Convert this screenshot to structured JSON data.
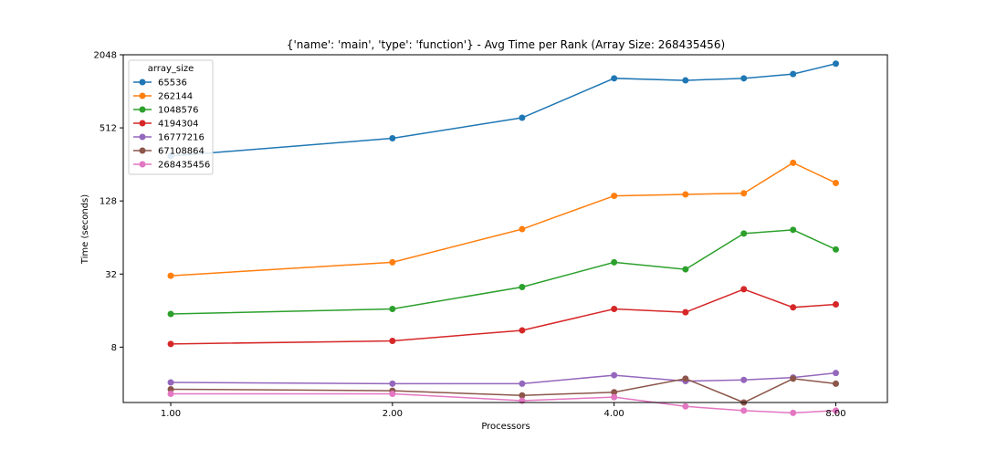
{
  "chart_data": {
    "type": "line",
    "title": "{'name': 'main', 'type': 'function'} - Avg Time per Rank (Array Size: 268435456)",
    "xlabel": "Processors",
    "ylabel": "Time (seconds)",
    "xscale": "log2",
    "yscale": "log2",
    "xlim": [
      0.862,
      9.4
    ],
    "ylim": [
      2.8,
      2048
    ],
    "xticks": [
      1,
      2,
      4,
      8
    ],
    "xtick_labels": [
      "1.00",
      "2.00",
      "4.00",
      "8.00"
    ],
    "yticks": [
      8,
      32,
      128,
      512,
      2048
    ],
    "ytick_labels": [
      "8",
      "32",
      "128",
      "512",
      "2048"
    ],
    "grid": false,
    "legend": {
      "title": "array_size",
      "placement": "top-left"
    },
    "x": [
      1,
      2,
      3,
      4,
      5,
      6,
      7,
      8
    ],
    "series": [
      {
        "name": "65536",
        "color": "#1f77b4",
        "values": [
          300,
          420,
          620,
          1310,
          1260,
          1310,
          1420,
          1730
        ]
      },
      {
        "name": "262144",
        "color": "#ff7f0e",
        "values": [
          31,
          40,
          75,
          141,
          145,
          148,
          264,
          180
        ]
      },
      {
        "name": "1048576",
        "color": "#2ca02c",
        "values": [
          15,
          16.5,
          25,
          40,
          35,
          69,
          74,
          51
        ]
      },
      {
        "name": "4194304",
        "color": "#d62728",
        "values": [
          8.5,
          9,
          11,
          16.5,
          15.5,
          24,
          17,
          18
        ]
      },
      {
        "name": "16777216",
        "color": "#9467bd",
        "values": [
          4.1,
          4,
          4,
          4.7,
          4.2,
          4.3,
          4.5,
          4.9
        ]
      },
      {
        "name": "67108864",
        "color": "#8c564b",
        "values": [
          3.6,
          3.5,
          3.2,
          3.4,
          4.4,
          2.8,
          4.4,
          4
        ]
      },
      {
        "name": "268435456",
        "color": "#e377c2",
        "values": [
          3.3,
          3.3,
          2.9,
          3.1,
          2.6,
          2.4,
          2.3,
          2.4
        ]
      }
    ]
  }
}
